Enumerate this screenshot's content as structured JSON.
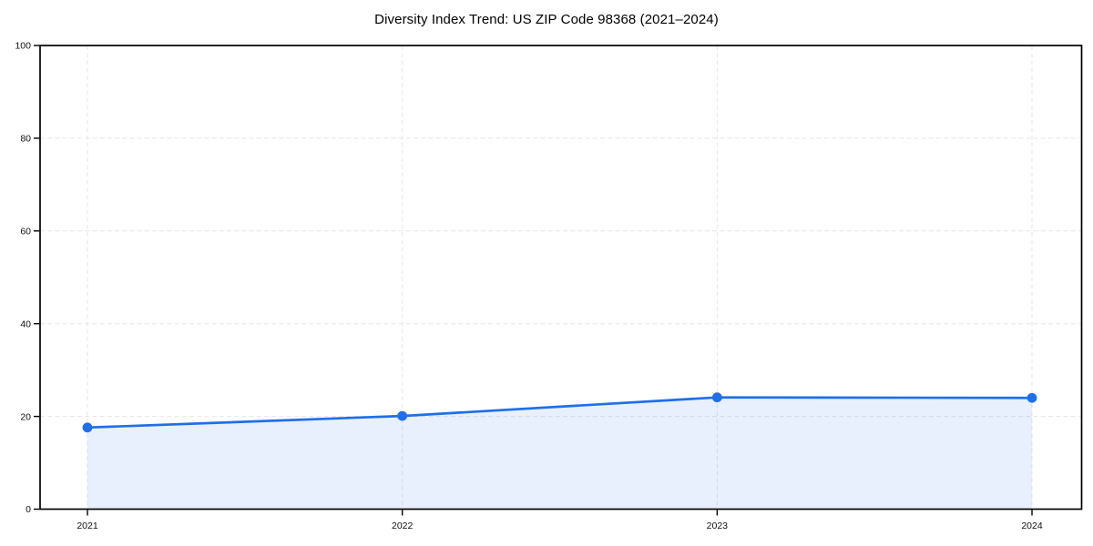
{
  "chart_data": {
    "type": "line",
    "title": "Diversity Index Trend: US ZIP Code 98368 (2021–2024)",
    "categories": [
      "2021",
      "2022",
      "2023",
      "2024"
    ],
    "values": [
      17.6,
      20.1,
      24.1,
      24.0
    ],
    "xlabel": "",
    "ylabel": "",
    "ylim": [
      0,
      100
    ],
    "y_ticks": [
      0,
      20,
      40,
      60,
      80,
      100
    ],
    "grid": true,
    "grid_style": "dashed",
    "legend": "none",
    "marker": "circle",
    "area_fill": true,
    "colors": {
      "line": "#1f6fe8",
      "marker": "#1f6fe8",
      "fill_opacity": 0.1,
      "grid": "#e6e6e6",
      "axis": "#000000",
      "tick_label": "#111111",
      "title": "#000000",
      "background": "#ffffff"
    }
  }
}
